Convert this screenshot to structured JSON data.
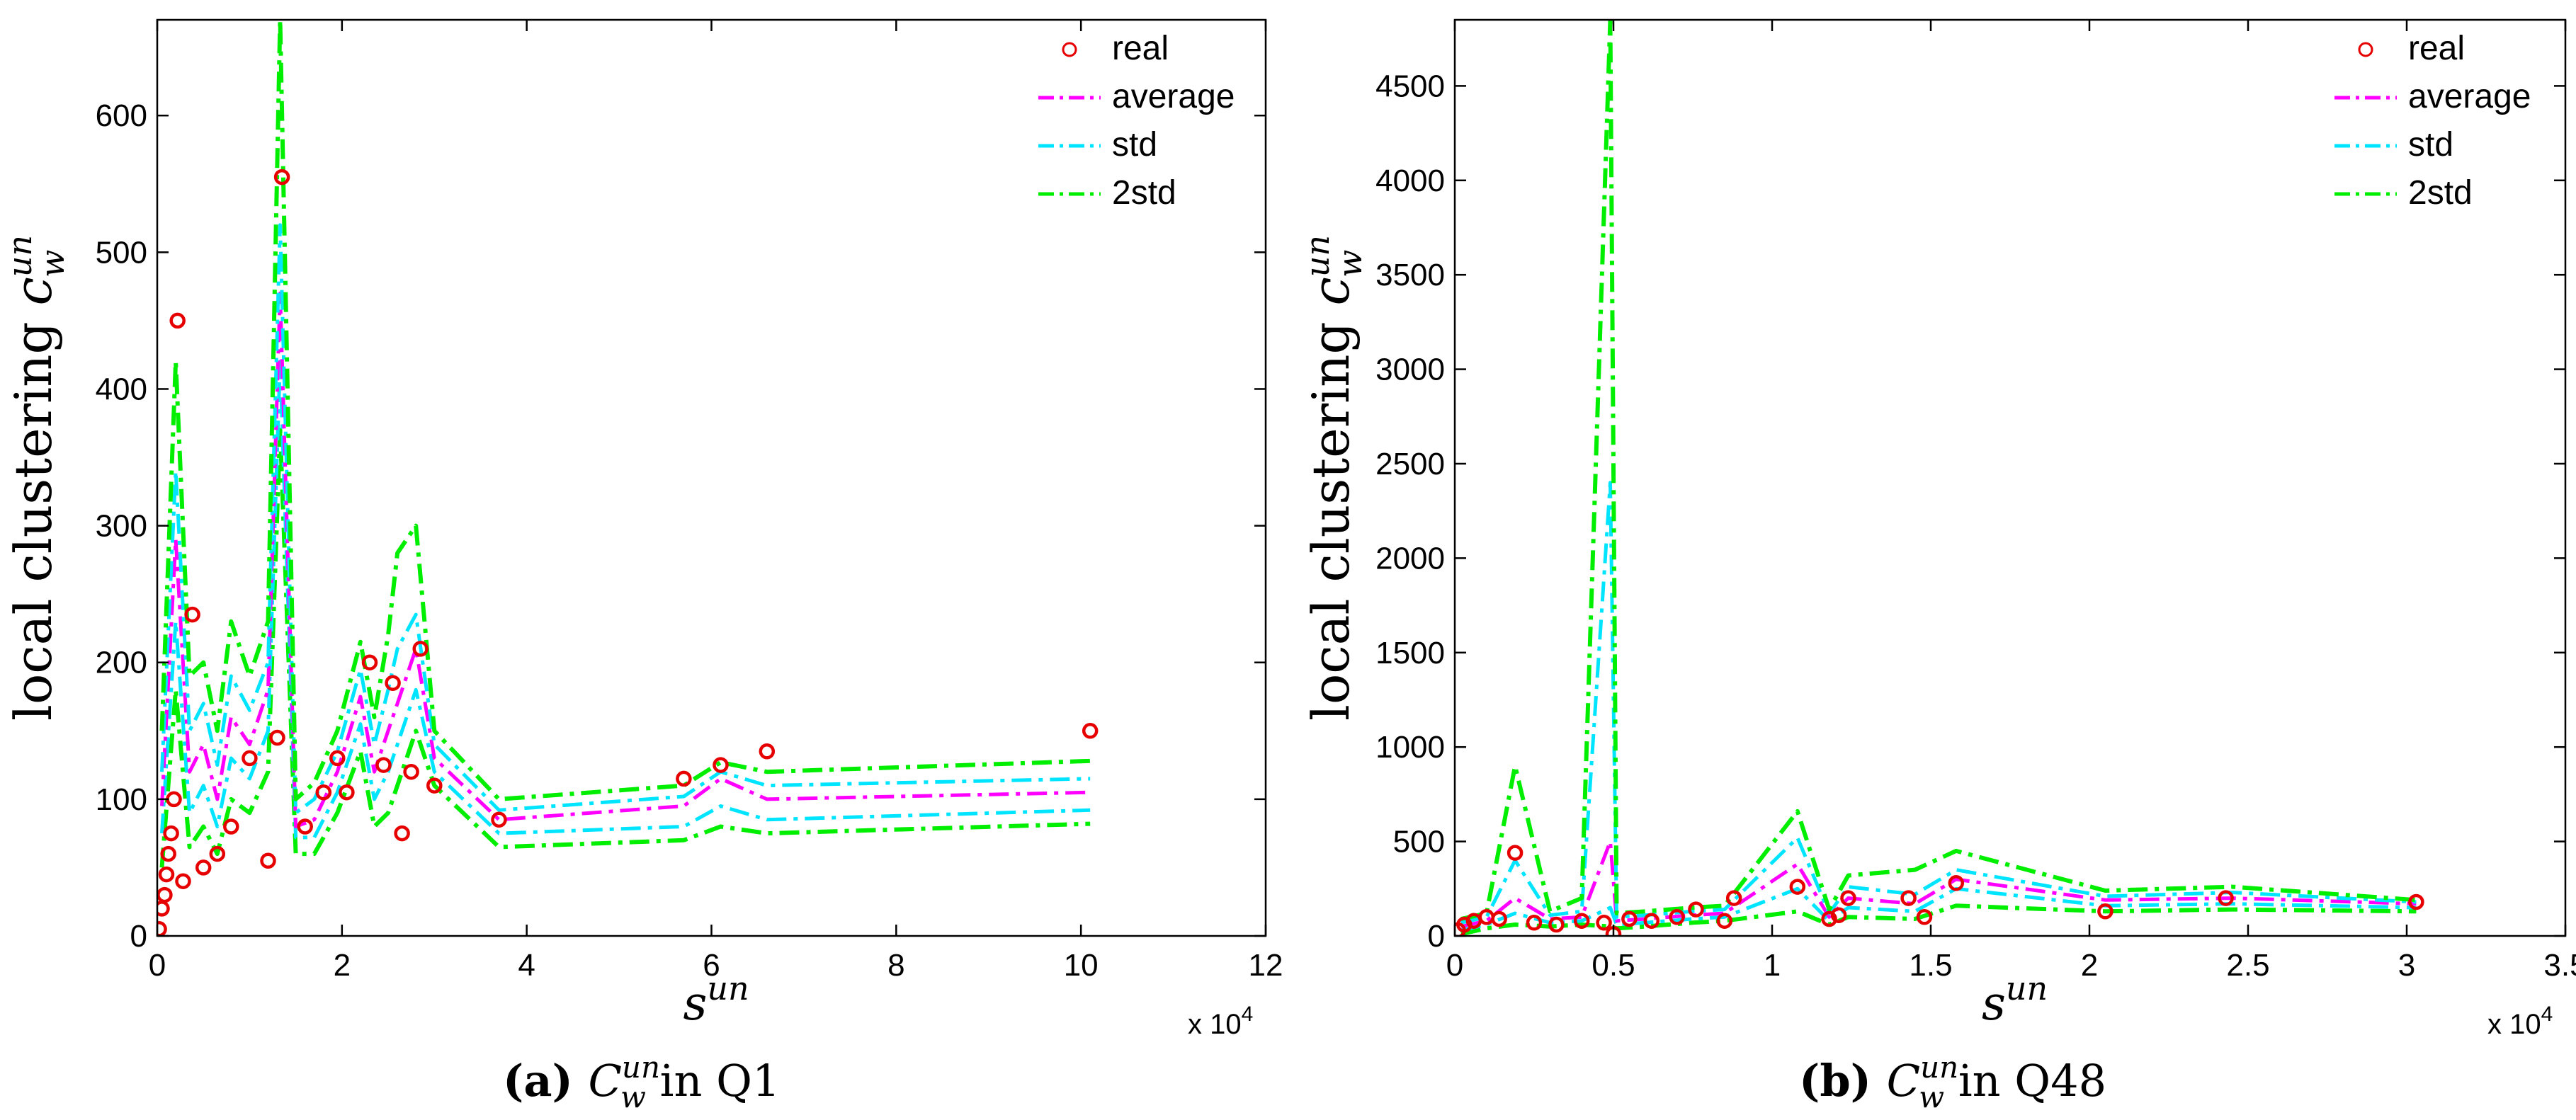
{
  "colors": {
    "real": "#e60000",
    "average": "#ff00ff",
    "std": "#00e5ff",
    "two_std": "#00ee00"
  },
  "chart_data": [
    {
      "type": "line",
      "panel": "a",
      "caption": {
        "label": "(a)",
        "symbol": "C",
        "sub": "w",
        "sup": "un",
        "text": " in Q1"
      },
      "xlabel": {
        "base": "s",
        "sup": "un"
      },
      "ylabel": {
        "text": "local clustering ",
        "symbol": "c",
        "sub": "w",
        "sup": "un"
      },
      "xlim": [
        0,
        12
      ],
      "ylim": [
        0,
        670
      ],
      "x_multiplier": "x 10",
      "x_multiplier_exp": "4",
      "xticks": [
        0,
        2,
        4,
        6,
        8,
        10,
        12
      ],
      "yticks": [
        0,
        100,
        200,
        300,
        400,
        500,
        600
      ],
      "legend": [
        "real",
        "average",
        "std",
        "2std"
      ],
      "legend_position": "top-right",
      "x": [
        0.05,
        0.2,
        0.35,
        0.5,
        0.65,
        0.8,
        1.0,
        1.2,
        1.33,
        1.5,
        1.7,
        1.95,
        2.2,
        2.35,
        2.5,
        2.6,
        2.8,
        3.0,
        3.7,
        5.7,
        6.1,
        6.6,
        10.1
      ],
      "series": [
        {
          "name": "average",
          "values": [
            95,
            290,
            120,
            140,
            100,
            160,
            140,
            180,
            470,
            80,
            85,
            120,
            175,
            120,
            150,
            170,
            210,
            130,
            85,
            95,
            115,
            100,
            105
          ]
        },
        {
          "name": "std+",
          "values": [
            120,
            340,
            150,
            170,
            125,
            190,
            165,
            200,
            520,
            90,
            100,
            135,
            195,
            140,
            180,
            210,
            235,
            140,
            92,
            102,
            120,
            110,
            115
          ]
        },
        {
          "name": "std-",
          "values": [
            75,
            230,
            90,
            110,
            80,
            130,
            115,
            150,
            420,
            72,
            72,
            105,
            155,
            100,
            120,
            140,
            180,
            120,
            75,
            80,
            95,
            85,
            92
          ]
        },
        {
          "name": "2std+",
          "values": [
            150,
            420,
            190,
            200,
            150,
            230,
            190,
            230,
            670,
            100,
            112,
            150,
            215,
            160,
            220,
            280,
            300,
            150,
            100,
            110,
            127,
            120,
            128
          ]
        },
        {
          "name": "2std-",
          "values": [
            50,
            180,
            65,
            80,
            60,
            100,
            90,
            120,
            370,
            60,
            60,
            90,
            135,
            80,
            90,
            110,
            150,
            110,
            65,
            70,
            80,
            75,
            82
          ]
        }
      ],
      "real_points": [
        [
          0.02,
          5
        ],
        [
          0.05,
          20
        ],
        [
          0.08,
          30
        ],
        [
          0.1,
          45
        ],
        [
          0.12,
          60
        ],
        [
          0.15,
          75
        ],
        [
          0.18,
          100
        ],
        [
          0.22,
          450
        ],
        [
          0.28,
          40
        ],
        [
          0.38,
          235
        ],
        [
          0.5,
          50
        ],
        [
          0.65,
          60
        ],
        [
          0.8,
          80
        ],
        [
          1.0,
          130
        ],
        [
          1.2,
          55
        ],
        [
          1.3,
          145
        ],
        [
          1.35,
          555
        ],
        [
          1.6,
          80
        ],
        [
          1.8,
          105
        ],
        [
          1.95,
          130
        ],
        [
          2.05,
          105
        ],
        [
          2.3,
          200
        ],
        [
          2.45,
          125
        ],
        [
          2.55,
          185
        ],
        [
          2.65,
          75
        ],
        [
          2.75,
          120
        ],
        [
          2.85,
          210
        ],
        [
          3.0,
          110
        ],
        [
          3.7,
          85
        ],
        [
          5.7,
          115
        ],
        [
          6.1,
          125
        ],
        [
          6.6,
          135
        ],
        [
          10.1,
          150
        ]
      ]
    },
    {
      "type": "line",
      "panel": "b",
      "caption": {
        "label": "(b)",
        "symbol": "C",
        "sub": "w",
        "sup": "un",
        "text": " in Q48"
      },
      "xlabel": {
        "base": "s",
        "sup": "un"
      },
      "ylabel": {
        "text": "local clustering ",
        "symbol": "c",
        "sub": "w",
        "sup": "un"
      },
      "xlim": [
        0,
        3.5
      ],
      "ylim": [
        0,
        4850
      ],
      "x_multiplier": "x 10",
      "x_multiplier_exp": "4",
      "xticks": [
        0,
        0.5,
        1,
        1.5,
        2,
        2.5,
        3,
        3.5
      ],
      "yticks": [
        0,
        500,
        1000,
        1500,
        2000,
        2500,
        3000,
        3500,
        4000,
        4500
      ],
      "legend": [
        "real",
        "average",
        "std",
        "2std"
      ],
      "legend_position": "top-right",
      "x": [
        0.02,
        0.1,
        0.19,
        0.3,
        0.4,
        0.49,
        0.51,
        0.6,
        0.75,
        0.85,
        1.08,
        1.18,
        1.24,
        1.45,
        1.58,
        2.05,
        2.45,
        3.03
      ],
      "series": [
        {
          "name": "average",
          "values": [
            50,
            80,
            200,
            90,
            100,
            500,
            80,
            90,
            110,
            120,
            380,
            100,
            200,
            170,
            300,
            190,
            200,
            170
          ]
        },
        {
          "name": "std+",
          "values": [
            70,
            100,
            400,
            110,
            130,
            2400,
            100,
            110,
            130,
            140,
            520,
            120,
            260,
            220,
            350,
            210,
            230,
            180
          ]
        },
        {
          "name": "std-",
          "values": [
            30,
            60,
            120,
            70,
            80,
            150,
            60,
            70,
            90,
            100,
            250,
            80,
            150,
            130,
            250,
            160,
            170,
            150
          ]
        },
        {
          "name": "2std+",
          "values": [
            90,
            120,
            900,
            130,
            200,
            4850,
            120,
            130,
            150,
            160,
            660,
            140,
            320,
            350,
            450,
            240,
            260,
            190
          ]
        },
        {
          "name": "2std-",
          "values": [
            10,
            40,
            60,
            50,
            60,
            50,
            40,
            50,
            70,
            80,
            130,
            60,
            100,
            90,
            160,
            130,
            140,
            130
          ]
        }
      ],
      "real_points": [
        [
          0.01,
          30
        ],
        [
          0.03,
          60
        ],
        [
          0.06,
          80
        ],
        [
          0.1,
          100
        ],
        [
          0.14,
          90
        ],
        [
          0.19,
          440
        ],
        [
          0.25,
          70
        ],
        [
          0.32,
          60
        ],
        [
          0.4,
          80
        ],
        [
          0.47,
          70
        ],
        [
          0.5,
          10
        ],
        [
          0.55,
          90
        ],
        [
          0.62,
          80
        ],
        [
          0.7,
          100
        ],
        [
          0.76,
          140
        ],
        [
          0.85,
          80
        ],
        [
          0.88,
          200
        ],
        [
          1.08,
          260
        ],
        [
          1.18,
          90
        ],
        [
          1.21,
          110
        ],
        [
          1.24,
          200
        ],
        [
          1.43,
          200
        ],
        [
          1.48,
          100
        ],
        [
          1.58,
          280
        ],
        [
          2.05,
          130
        ],
        [
          2.43,
          200
        ],
        [
          3.03,
          180
        ]
      ]
    }
  ]
}
